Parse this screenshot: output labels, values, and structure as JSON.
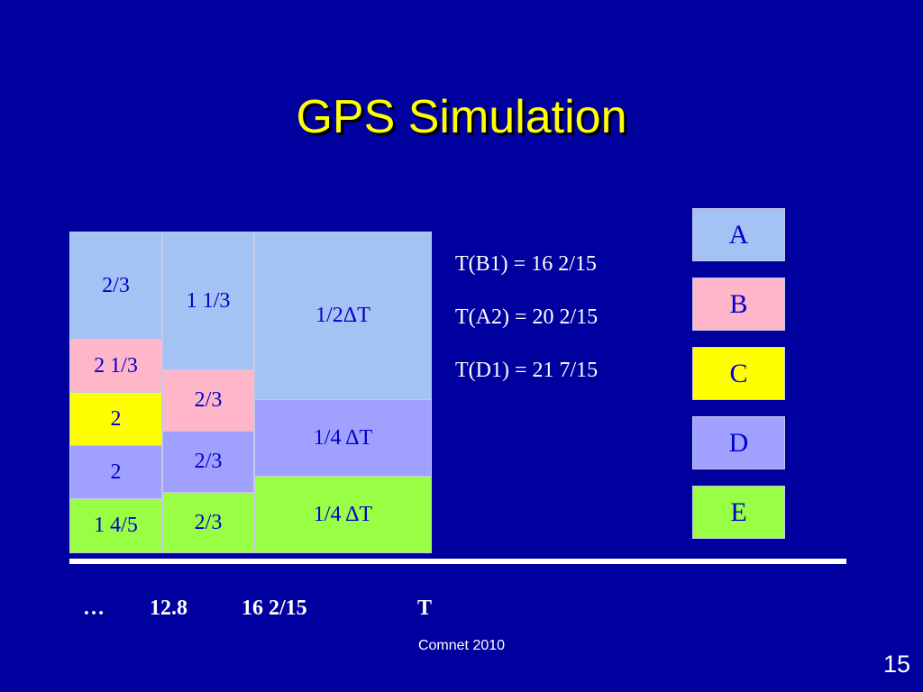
{
  "title": "GPS Simulation",
  "columns": [
    [
      "2/3",
      "2 1/3",
      "2",
      "2",
      "1 4/5"
    ],
    [
      "1 1/3",
      "2/3",
      "2/3",
      "2/3"
    ],
    [
      "1/2ΔT",
      "1/4 ΔT",
      "1/4 ΔT"
    ]
  ],
  "equations": [
    "T(B1) = 16 2/15",
    "T(A2) = 20 2/15",
    "T(D1) = 21 7/15"
  ],
  "legend": [
    "A",
    "B",
    "C",
    "D",
    "E"
  ],
  "axis_labels": [
    "…",
    "12.8",
    "16 2/15",
    "T"
  ],
  "footer": "Comnet 2010",
  "page_number": "15"
}
